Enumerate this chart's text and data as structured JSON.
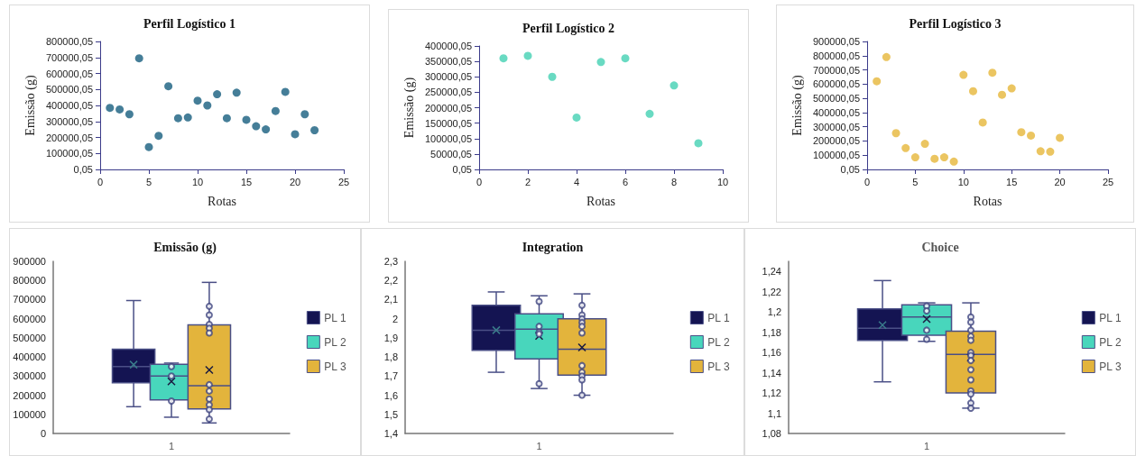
{
  "chart_data": [
    {
      "type": "scatter",
      "title": "Perfil Logístico 1",
      "xlabel": "Rotas",
      "ylabel": "Emissão (g)",
      "marker": "circle",
      "xlim": [
        0,
        25
      ],
      "xticks": [
        0,
        5,
        10,
        15,
        20,
        25
      ],
      "ylim": [
        0.05,
        800000.05
      ],
      "yticks": [
        {
          "value": 0.05,
          "label": "0,05"
        },
        {
          "value": 100000.05,
          "label": "100000,05"
        },
        {
          "value": 200000.05,
          "label": "200000,05"
        },
        {
          "value": 300000.05,
          "label": "300000,05"
        },
        {
          "value": 400000.05,
          "label": "400000,05"
        },
        {
          "value": 500000.05,
          "label": "500000,05"
        },
        {
          "value": 600000.05,
          "label": "600000,05"
        },
        {
          "value": 700000.05,
          "label": "700000,05"
        },
        {
          "value": 800000.05,
          "label": "800000,05"
        }
      ],
      "series": [
        {
          "color": "#175e7e",
          "x": [
            1,
            2,
            3,
            4,
            5,
            6,
            7,
            8,
            9,
            10,
            11,
            12,
            13,
            14,
            15,
            16,
            17,
            18,
            19,
            20,
            21,
            22
          ],
          "values": [
            385000,
            375000,
            345000,
            695000,
            140000,
            210000,
            520000,
            320000,
            325000,
            430000,
            400000,
            470000,
            320000,
            480000,
            310000,
            270000,
            250000,
            365000,
            485000,
            220000,
            345000,
            245000
          ]
        }
      ]
    },
    {
      "type": "scatter",
      "title": "Perfil Logístico 2",
      "xlabel": "Rotas",
      "ylabel": "Emissão (g)",
      "marker": "circle",
      "xlim": [
        0,
        10
      ],
      "xticks": [
        0,
        2,
        4,
        6,
        8,
        10
      ],
      "ylim": [
        0.05,
        400000.05
      ],
      "yticks": [
        {
          "value": 0.05,
          "label": "0,05"
        },
        {
          "value": 50000.05,
          "label": "50000,05"
        },
        {
          "value": 100000.05,
          "label": "100000,05"
        },
        {
          "value": 150000.05,
          "label": "150000,05"
        },
        {
          "value": 200000.05,
          "label": "200000,05"
        },
        {
          "value": 250000.05,
          "label": "250000,05"
        },
        {
          "value": 300000.05,
          "label": "300000,05"
        },
        {
          "value": 350000.05,
          "label": "350000,05"
        },
        {
          "value": 400000.05,
          "label": "400000,05"
        }
      ],
      "series": [
        {
          "color": "#44d1b3",
          "x": [
            1,
            2,
            3,
            4,
            5,
            6,
            7,
            8,
            9
          ],
          "values": [
            360000,
            368000,
            300000,
            168000,
            348000,
            360000,
            180000,
            272000,
            85000
          ]
        }
      ]
    },
    {
      "type": "scatter",
      "title": "Perfil Logístico 3",
      "xlabel": "Rotas",
      "ylabel": "Emissão (g)",
      "marker": "circle",
      "xlim": [
        0,
        25
      ],
      "xticks": [
        0,
        5,
        10,
        15,
        20,
        25
      ],
      "ylim": [
        0.05,
        900000.05
      ],
      "yticks": [
        {
          "value": 0.05,
          "label": "0,05"
        },
        {
          "value": 100000.05,
          "label": "100000,05"
        },
        {
          "value": 200000.05,
          "label": "200000,05"
        },
        {
          "value": 300000.05,
          "label": "300000,05"
        },
        {
          "value": 400000.05,
          "label": "400000,05"
        },
        {
          "value": 500000.05,
          "label": "500000,05"
        },
        {
          "value": 600000.05,
          "label": "600000,05"
        },
        {
          "value": 700000.05,
          "label": "700000,05"
        },
        {
          "value": 800000.05,
          "label": "800000,05"
        },
        {
          "value": 900000.05,
          "label": "900000,05"
        }
      ],
      "series": [
        {
          "color": "#e6b63a",
          "x": [
            1,
            2,
            3,
            4,
            5,
            6,
            7,
            8,
            9,
            10,
            11,
            12,
            13,
            14,
            15,
            16,
            17,
            18,
            19,
            20
          ],
          "values": [
            620000,
            790000,
            255000,
            150000,
            85000,
            180000,
            75000,
            85000,
            55000,
            665000,
            550000,
            330000,
            680000,
            525000,
            570000,
            262000,
            238000,
            128000,
            125000,
            222000
          ]
        }
      ]
    },
    {
      "type": "box",
      "title": "Emissão (g)",
      "categories": [
        "1"
      ],
      "legend": "right",
      "ylim": [
        0,
        900000
      ],
      "yticks": [
        0,
        100000,
        200000,
        300000,
        400000,
        500000,
        600000,
        700000,
        800000,
        900000
      ],
      "series": [
        {
          "name": "PL 1",
          "color": "#141452",
          "boxes": [
            {
              "low": 140000,
              "q1": 265000,
              "median": 350000,
              "q3": 440000,
              "high": 695000,
              "mean": 360000
            }
          ]
        },
        {
          "name": "PL 2",
          "color": "#48d6bc",
          "boxes": [
            {
              "low": 85000,
              "q1": 175000,
              "median": 300000,
              "q3": 362000,
              "high": 368000,
              "mean": 272000
            }
          ]
        },
        {
          "name": "PL 3",
          "color": "#e3b43c",
          "boxes": [
            {
              "low": 55000,
              "q1": 128000,
              "median": 250000,
              "q3": 568000,
              "high": 790000,
              "mean": 332000
            }
          ]
        },
        {
          "type": "scatter",
          "color": "#3f4580",
          "x": [
            "1",
            "1",
            "1"
          ],
          "values": [
            350000,
            300000,
            170000
          ]
        },
        {
          "type": "scatter",
          "color": "#3f4580",
          "x": [
            "1",
            "1",
            "1",
            "1",
            "1",
            "1",
            "1",
            "1",
            "1",
            "1",
            "1"
          ],
          "values": [
            665000,
            620000,
            570000,
            550000,
            525000,
            255000,
            222000,
            180000,
            150000,
            125000,
            75000
          ]
        }
      ]
    },
    {
      "type": "box",
      "title": "Integration",
      "categories": [
        "1"
      ],
      "legend": "right",
      "ylim": [
        1.4,
        2.3
      ],
      "yticks": [
        {
          "value": 1.4,
          "label": "1,4"
        },
        {
          "value": 1.5,
          "label": "1,5"
        },
        {
          "value": 1.6,
          "label": "1,6"
        },
        {
          "value": 1.7,
          "label": "1,7"
        },
        {
          "value": 1.8,
          "label": "1,8"
        },
        {
          "value": 1.9,
          "label": "1,9"
        },
        2,
        {
          "value": 2.1,
          "label": "2,1"
        },
        {
          "value": 2.2,
          "label": "2,2"
        },
        {
          "value": 2.3,
          "label": "2,3"
        }
      ],
      "series": [
        {
          "name": "PL 1",
          "color": "#141452",
          "boxes": [
            {
              "low": 1.72,
              "q1": 1.835,
              "median": 1.94,
              "q3": 2.07,
              "high": 2.14,
              "mean": 1.94
            }
          ]
        },
        {
          "name": "PL 2",
          "color": "#48d6bc",
          "boxes": [
            {
              "low": 1.635,
              "q1": 1.79,
              "median": 1.945,
              "q3": 2.025,
              "high": 2.12,
              "mean": 1.91
            }
          ]
        },
        {
          "name": "PL 3",
          "color": "#e3b43c",
          "boxes": [
            {
              "low": 1.6,
              "q1": 1.705,
              "median": 1.84,
              "q3": 2.0,
              "high": 2.13,
              "mean": 1.85
            }
          ]
        },
        {
          "type": "scatter",
          "color": "#3f4580",
          "x": [
            "1",
            "1",
            "1",
            "1",
            "1"
          ],
          "values": [
            2.09,
            1.96,
            1.93,
            1.92,
            1.66
          ]
        },
        {
          "type": "scatter",
          "color": "#3f4580",
          "x": [
            "1",
            "1",
            "1",
            "1",
            "1",
            "1",
            "1",
            "1",
            "1",
            "1",
            "1"
          ],
          "values": [
            2.07,
            2.02,
            2.0,
            1.98,
            1.96,
            1.925,
            1.755,
            1.72,
            1.7,
            1.68,
            1.6
          ]
        }
      ]
    },
    {
      "type": "box",
      "title": "Choice",
      "categories": [
        "1"
      ],
      "legend": "right",
      "ylim": [
        1.08,
        1.25
      ],
      "yticks": [
        {
          "value": 1.08,
          "label": "1,08"
        },
        {
          "value": 1.1,
          "label": "1,1"
        },
        {
          "value": 1.12,
          "label": "1,12"
        },
        {
          "value": 1.14,
          "label": "1,14"
        },
        {
          "value": 1.16,
          "label": "1,16"
        },
        {
          "value": 1.18,
          "label": "1,18"
        },
        {
          "value": 1.2,
          "label": "1,2"
        },
        {
          "value": 1.22,
          "label": "1,22"
        },
        {
          "value": 1.24,
          "label": "1,24"
        }
      ],
      "series": [
        {
          "name": "PL 1",
          "color": "#141452",
          "boxes": [
            {
              "low": 1.131,
              "q1": 1.172,
              "median": 1.184,
              "q3": 1.203,
              "high": 1.231,
              "mean": 1.187
            }
          ]
        },
        {
          "name": "PL 2",
          "color": "#48d6bc",
          "boxes": [
            {
              "low": 1.171,
              "q1": 1.177,
              "median": 1.195,
              "q3": 1.207,
              "high": 1.209,
              "mean": 1.193
            }
          ]
        },
        {
          "name": "PL 3",
          "color": "#e3b43c",
          "boxes": [
            {
              "low": 1.105,
              "q1": 1.12,
              "median": 1.158,
              "q3": 1.181,
              "high": 1.209,
              "mean": 1.155
            }
          ]
        },
        {
          "type": "scatter",
          "color": "#3f4580",
          "x": [
            "1",
            "1",
            "1",
            "1"
          ],
          "values": [
            1.206,
            1.201,
            1.182,
            1.173
          ]
        },
        {
          "type": "scatter",
          "color": "#3f4580",
          "x": [
            "1",
            "1",
            "1",
            "1",
            "1",
            "1",
            "1",
            "1",
            "1",
            "1",
            "1",
            "1",
            "1",
            "1"
          ],
          "values": [
            1.195,
            1.19,
            1.182,
            1.176,
            1.172,
            1.16,
            1.157,
            1.152,
            1.143,
            1.133,
            1.122,
            1.119,
            1.11,
            1.105
          ]
        }
      ]
    }
  ]
}
